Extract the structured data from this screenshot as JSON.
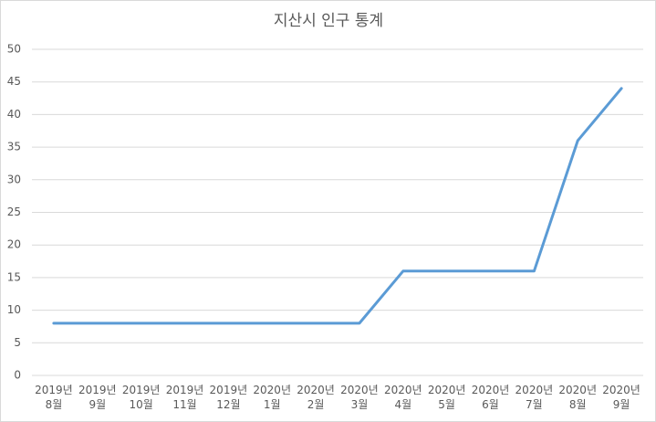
{
  "chart_data": {
    "type": "line",
    "title": "지산시 인구 통계",
    "categories": [
      "2019년 8월",
      "2019년 9월",
      "2019년 10월",
      "2019년 11월",
      "2019년 12월",
      "2020년 1월",
      "2020년 2월",
      "2020년 3월",
      "2020년 4월",
      "2020년 5월",
      "2020년 6월",
      "2020년 7월",
      "2020년 8월",
      "2020년 9월"
    ],
    "values": [
      8,
      8,
      8,
      8,
      8,
      8,
      8,
      8,
      16,
      16,
      16,
      16,
      36,
      44
    ],
    "color": "#5b9bd5",
    "ylim": [
      0,
      50
    ],
    "yticks": [
      0,
      5,
      10,
      15,
      20,
      25,
      30,
      35,
      40,
      45,
      50
    ],
    "grid": true
  }
}
